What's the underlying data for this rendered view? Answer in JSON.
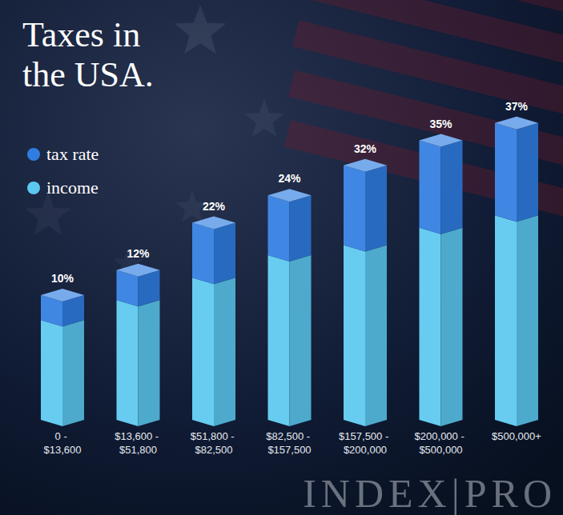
{
  "chart_data": {
    "type": "bar",
    "title": "Taxes in the USA.",
    "categories": [
      "0 - $13,600",
      "$13,600 - $51,800",
      "$51,800 - $82,500",
      "$82,500 - $157,500",
      "$157,500 - $200,000",
      "$200,000 - $500,000",
      "$500,000+"
    ],
    "series": [
      {
        "name": "income",
        "color": "#5bc8f0",
        "values": [
          40,
          48,
          57,
          66,
          70,
          77,
          82
        ]
      },
      {
        "name": "tax rate",
        "color": "#2f7de1",
        "values": [
          10,
          12,
          22,
          24,
          32,
          35,
          37
        ],
        "value_labels": [
          "10%",
          "12%",
          "22%",
          "24%",
          "32%",
          "35%",
          "37%"
        ]
      }
    ],
    "stacked": true,
    "data_labels": true,
    "legend": "top-left",
    "tick_labels": "x",
    "ylim": [
      0,
      125
    ],
    "watermark": "INDEX|PRO"
  }
}
